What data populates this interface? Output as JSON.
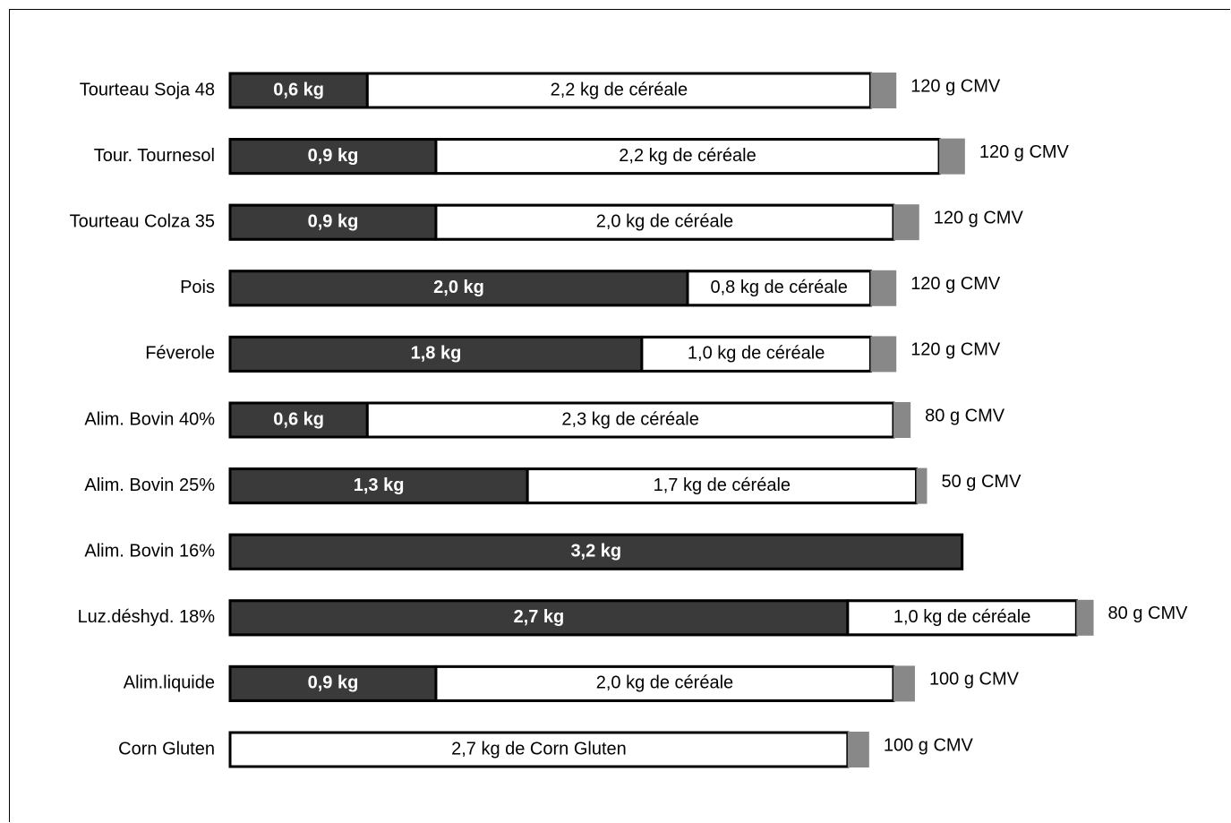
{
  "chart_data": {
    "type": "bar",
    "orientation": "horizontal",
    "stacked": true,
    "grid": false,
    "legend": "none",
    "colors": {
      "protein": "#3a3a3a",
      "cereal": "#ffffff",
      "cmv": "#888888",
      "outline": "#000000"
    },
    "categories": [
      "Tourteau Soja 48",
      "Tour. Tournesol",
      "Tourteau Colza 35",
      "Pois",
      "Féverole",
      "Alim. Bovin 40%",
      "Alim. Bovin 25%",
      "Alim. Bovin 16%",
      "Luz.déshyd. 18%",
      "Alim.liquide",
      "Corn Gluten"
    ],
    "series": [
      {
        "values": [
          0.6,
          0.9,
          0.9,
          2.0,
          1.8,
          0.6,
          1.3,
          3.2,
          2.7,
          0.9,
          0
        ],
        "labels": [
          "0,6 kg",
          "0,9 kg",
          "0,9 kg",
          "2,0 kg",
          "1,8 kg",
          "0,6 kg",
          "1,3 kg",
          "3,2 kg",
          "2,7 kg",
          "0,9 kg",
          ""
        ]
      },
      {
        "values": [
          2.2,
          2.2,
          2.0,
          0.8,
          1.0,
          2.3,
          1.7,
          0,
          1.0,
          2.0,
          2.7
        ],
        "labels": [
          "2,2 kg de céréale",
          "2,2 kg de céréale",
          "2,0 kg de céréale",
          "0,8 kg de céréale",
          "1,0 kg de céréale",
          "2,3 kg de céréale",
          "1,7 kg de céréale",
          "",
          "1,0 kg de céréale",
          "2,0 kg de céréale",
          "2,7 kg de Corn Gluten"
        ]
      },
      {
        "values": [
          120,
          120,
          120,
          120,
          120,
          80,
          50,
          0,
          80,
          100,
          100
        ],
        "labels": [
          "120 g CMV",
          "120 g CMV",
          "120 g CMV",
          "120 g CMV",
          "120 g CMV",
          "80 g CMV",
          "50 g CMV",
          "",
          "80 g CMV",
          "100 g CMV",
          "100 g CMV"
        ]
      }
    ]
  }
}
